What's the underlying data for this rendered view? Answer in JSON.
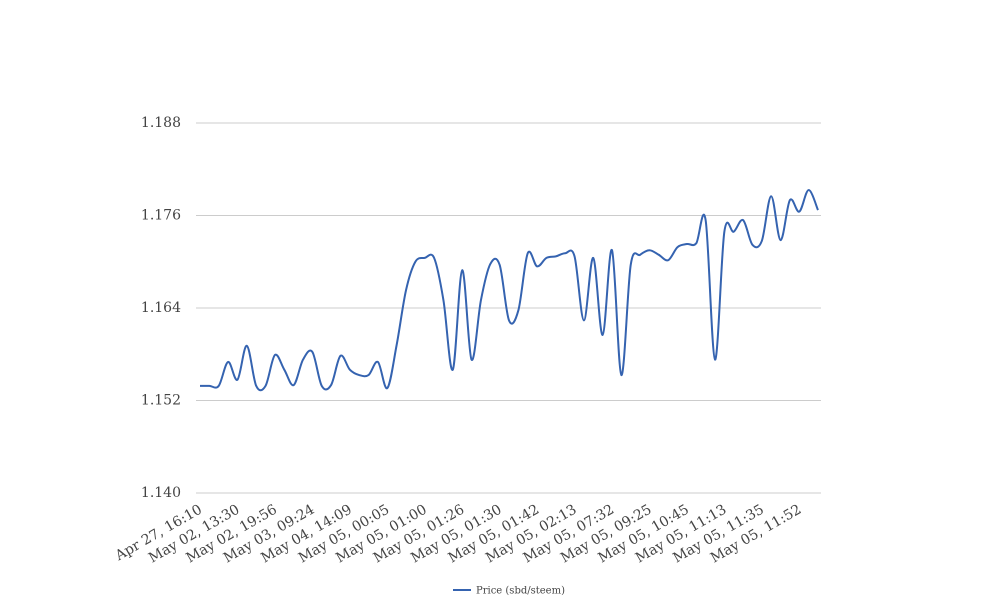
{
  "chart_data": {
    "type": "line",
    "categories": [
      "Apr 27, 16:10",
      null,
      null,
      null,
      "May 02, 13:30",
      null,
      null,
      null,
      "May 02, 19:56",
      null,
      null,
      null,
      "May 03, 09:24",
      null,
      null,
      null,
      "May 04, 14:09",
      null,
      null,
      null,
      "May 05, 00:05",
      null,
      null,
      null,
      "May 05, 01:00",
      null,
      null,
      null,
      "May 05, 01:26",
      null,
      null,
      null,
      "May 05, 01:30",
      null,
      null,
      null,
      "May 05, 01:42",
      null,
      null,
      null,
      "May 05, 02:13",
      null,
      null,
      null,
      "May 05, 07:32",
      null,
      null,
      null,
      "May 05, 09:25",
      null,
      null,
      null,
      "May 05, 10:45",
      null,
      null,
      null,
      "May 05, 11:13",
      null,
      null,
      null,
      "May 05, 11:35",
      null,
      null,
      null,
      "May 05, 11:52",
      null,
      null
    ],
    "series": [
      {
        "name": "Price (sbd/steem)",
        "color": "#3563b0",
        "values": [
          1.1539,
          1.1539,
          1.1539,
          1.157,
          1.1547,
          1.1591,
          1.1539,
          1.1539,
          1.1579,
          1.156,
          1.154,
          1.1573,
          1.1583,
          1.1539,
          1.154,
          1.1578,
          1.156,
          1.1553,
          1.1553,
          1.157,
          1.1536,
          1.1592,
          1.1663,
          1.17,
          1.1705,
          1.1705,
          1.165,
          1.156,
          1.1689,
          1.1573,
          1.165,
          1.1697,
          1.1696,
          1.1624,
          1.1637,
          1.1711,
          1.1694,
          1.1705,
          1.1707,
          1.1711,
          1.1707,
          1.1624,
          1.1705,
          1.1605,
          1.1715,
          1.1553,
          1.1696,
          1.1709,
          1.1715,
          1.1709,
          1.1702,
          1.1719,
          1.1723,
          1.1724,
          1.1754,
          1.1573,
          1.1739,
          1.1739,
          1.1754,
          1.1722,
          1.1727,
          1.1785,
          1.1728,
          1.178,
          1.1765,
          1.1793,
          1.1767
        ]
      }
    ],
    "ylim": [
      1.14,
      1.188
    ],
    "yticks": [
      {
        "value": 1.14,
        "label": "1.140"
      },
      1.152,
      1.164,
      1.176,
      1.188
    ],
    "grid": true,
    "legend": "bottom"
  }
}
